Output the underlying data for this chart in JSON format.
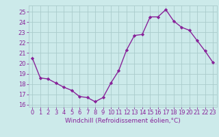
{
  "x": [
    0,
    1,
    2,
    3,
    4,
    5,
    6,
    7,
    8,
    9,
    10,
    11,
    12,
    13,
    14,
    15,
    16,
    17,
    18,
    19,
    20,
    21,
    22,
    23
  ],
  "y": [
    20.5,
    18.6,
    18.5,
    18.1,
    17.7,
    17.4,
    16.8,
    16.7,
    16.3,
    16.7,
    18.1,
    19.3,
    21.3,
    22.7,
    22.8,
    24.5,
    24.5,
    25.2,
    24.1,
    23.5,
    23.2,
    22.2,
    21.2,
    20.1
  ],
  "line_color": "#882299",
  "marker": "D",
  "marker_size": 2.2,
  "bg_color": "#cceaea",
  "grid_color": "#aacccc",
  "ylabel_values": [
    16,
    17,
    18,
    19,
    20,
    21,
    22,
    23,
    24,
    25
  ],
  "xlabel": "Windchill (Refroidissement éolien,°C)",
  "ylim": [
    15.8,
    25.6
  ],
  "xlim": [
    -0.5,
    23.5
  ],
  "font_color": "#882299",
  "tick_fontsize": 6.0,
  "xlabel_fontsize": 6.5,
  "linewidth": 1.0
}
